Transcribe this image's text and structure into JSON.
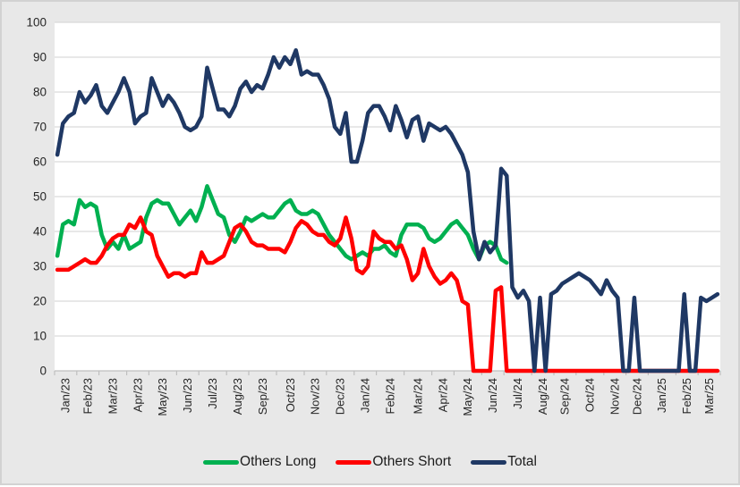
{
  "style": {
    "background": "#E8E8E8",
    "frame_border": "#D2D2D2",
    "plot_background": "#FFFFFF",
    "gridline_color": "#D9D9D9",
    "axis_color": "#BFBFBF",
    "tick_color": "#BFBFBF",
    "label_color": "#262626"
  },
  "chart_data": {
    "type": "line",
    "title": "",
    "xlabel": "",
    "ylabel": "",
    "grid": "horizontal",
    "legend_position": "bottom",
    "y_axis": {
      "min": 0,
      "max": 100,
      "step": 10,
      "tick_labels": [
        "0",
        "10",
        "20",
        "30",
        "40",
        "50",
        "60",
        "70",
        "80",
        "90",
        "100"
      ]
    },
    "x_axis": {
      "note": "weekly points grouped by month tick labels",
      "month_labels": [
        "Jan/23",
        "Feb/23",
        "Mar/23",
        "Apr/23",
        "May/23",
        "Jun/23",
        "Jul/23",
        "Aug/23",
        "Sep/23",
        "Oct/23",
        "Nov/23",
        "Dec/23",
        "Jan/24",
        "Feb/24",
        "Mar/24",
        "Apr/24",
        "May/24",
        "Jun/24",
        "Jul/24",
        "Aug/24",
        "Sep/24",
        "Oct/24",
        "Nov/24",
        "Dec/24",
        "Jan/25",
        "Feb/25",
        "Mar/25"
      ]
    },
    "series": [
      {
        "name": "Others Long",
        "color": "#00B050",
        "monthly_values": [
          [
            33,
            42,
            43,
            42
          ],
          [
            49,
            47,
            48,
            47
          ],
          [
            39,
            35,
            37,
            35,
            39
          ],
          [
            35,
            36,
            37,
            44
          ],
          [
            48,
            49,
            48,
            48,
            45
          ],
          [
            42,
            44,
            46,
            43
          ],
          [
            47,
            53,
            49,
            45,
            44
          ],
          [
            39,
            37,
            40,
            44
          ],
          [
            43,
            44,
            45,
            44,
            44
          ],
          [
            46,
            48,
            49,
            46,
            45
          ],
          [
            45,
            46,
            45,
            42
          ],
          [
            39,
            37,
            35,
            33,
            32
          ],
          [
            33,
            34,
            33,
            35
          ],
          [
            35,
            36,
            34,
            33,
            39
          ],
          [
            42,
            42,
            42,
            41,
            38
          ],
          [
            37,
            38,
            40,
            42
          ],
          [
            43,
            41,
            39,
            35,
            32
          ],
          [
            36,
            37,
            36,
            32
          ],
          [
            31,
            null,
            null,
            null,
            null
          ],
          [
            null,
            null,
            null,
            null
          ],
          [
            null,
            null,
            null,
            null
          ],
          [
            null,
            null,
            null,
            null,
            null
          ],
          [
            null,
            null,
            null,
            null
          ],
          [
            null,
            null,
            null,
            null
          ],
          [
            null,
            null,
            null,
            null,
            null
          ],
          [
            null,
            null,
            null,
            null
          ],
          [
            null,
            null,
            null,
            null
          ]
        ]
      },
      {
        "name": "Others Short",
        "color": "#FF0000",
        "monthly_values": [
          [
            29,
            29,
            29,
            30
          ],
          [
            31,
            32,
            31,
            31
          ],
          [
            33,
            36,
            38,
            39,
            39
          ],
          [
            42,
            41,
            44,
            40
          ],
          [
            39,
            33,
            30,
            27,
            28
          ],
          [
            28,
            27,
            28,
            28
          ],
          [
            34,
            31,
            31,
            32,
            33
          ],
          [
            37,
            41,
            42,
            40
          ],
          [
            37,
            36,
            36,
            35,
            35
          ],
          [
            35,
            34,
            37,
            41,
            43
          ],
          [
            42,
            40,
            39,
            39
          ],
          [
            37,
            36,
            38,
            44,
            38
          ],
          [
            29,
            28,
            30,
            40
          ],
          [
            38,
            37,
            37,
            35,
            36
          ],
          [
            32,
            26,
            28,
            35,
            30
          ],
          [
            27,
            25,
            26,
            28
          ],
          [
            26,
            20,
            19,
            0,
            0
          ],
          [
            0,
            0,
            23,
            24
          ],
          [
            0,
            0,
            0,
            0,
            0
          ],
          [
            0,
            0,
            0,
            0
          ],
          [
            0,
            0,
            0,
            0
          ],
          [
            0,
            0,
            0,
            0,
            0
          ],
          [
            0,
            0,
            0,
            0
          ],
          [
            0,
            0,
            0,
            0
          ],
          [
            0,
            0,
            0,
            0,
            0
          ],
          [
            0,
            0,
            0,
            0
          ],
          [
            0,
            0,
            0,
            0
          ]
        ]
      },
      {
        "name": "Total",
        "color": "#1F3864",
        "monthly_values": [
          [
            62,
            71,
            73,
            74
          ],
          [
            80,
            77,
            79,
            82
          ],
          [
            76,
            74,
            77,
            80,
            84
          ],
          [
            80,
            71,
            73,
            74
          ],
          [
            84,
            80,
            76,
            79,
            77
          ],
          [
            74,
            70,
            69,
            70
          ],
          [
            73,
            87,
            81,
            75,
            75
          ],
          [
            73,
            76,
            81,
            83
          ],
          [
            80,
            82,
            81,
            85,
            90
          ],
          [
            87,
            90,
            88,
            92,
            85
          ],
          [
            86,
            85,
            85,
            82
          ],
          [
            78,
            70,
            68,
            74,
            60
          ],
          [
            60,
            66,
            74,
            76
          ],
          [
            76,
            73,
            69,
            76,
            72
          ],
          [
            67,
            72,
            73,
            66,
            71
          ],
          [
            70,
            69,
            70,
            68
          ],
          [
            65,
            62,
            57,
            40,
            32
          ],
          [
            37,
            34,
            36,
            58
          ],
          [
            56,
            24,
            21,
            23,
            20
          ],
          [
            0,
            21,
            0,
            22
          ],
          [
            23,
            25,
            26,
            27
          ],
          [
            28,
            27,
            26,
            24,
            22
          ],
          [
            26,
            23,
            21,
            0
          ],
          [
            0,
            21,
            0,
            0
          ],
          [
            0,
            0,
            0,
            0,
            0
          ],
          [
            0,
            22,
            0,
            0
          ],
          [
            21,
            20,
            21,
            22
          ]
        ]
      }
    ]
  }
}
